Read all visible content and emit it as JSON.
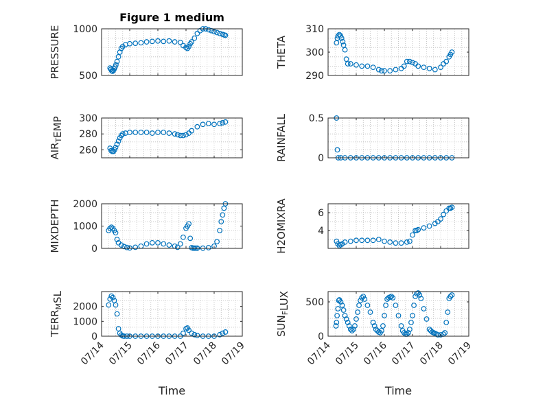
{
  "figure_title": "Figure 1 medium",
  "colors": {
    "marker": "#0072BD",
    "axis": "#262626",
    "grid": "#bdbdbd"
  },
  "chart_data": [
    {
      "type": "scatter",
      "ylabel": "PRESSURE",
      "ylabel_parts": [
        [
          "PRESSURE",
          ""
        ]
      ],
      "ylim": [
        500,
        1000
      ],
      "yticks": [
        500,
        1000
      ],
      "ytick_labels": [
        "500",
        "1000"
      ],
      "xlim": [
        0,
        5
      ],
      "grid": true,
      "x": [
        0.3,
        0.33,
        0.36,
        0.39,
        0.42,
        0.45,
        0.48,
        0.51,
        0.55,
        0.6,
        0.65,
        0.7,
        0.75,
        0.85,
        1.0,
        1.2,
        1.4,
        1.6,
        1.8,
        2.0,
        2.2,
        2.4,
        2.6,
        2.8,
        2.9,
        3.0,
        3.05,
        3.1,
        3.15,
        3.2,
        3.3,
        3.4,
        3.5,
        3.6,
        3.7,
        3.8,
        3.9,
        4.0,
        4.1,
        4.2,
        4.3,
        4.35,
        4.4
      ],
      "y": [
        580,
        565,
        550,
        545,
        555,
        570,
        590,
        615,
        650,
        700,
        750,
        790,
        810,
        830,
        840,
        845,
        850,
        860,
        865,
        870,
        865,
        870,
        860,
        855,
        820,
        800,
        790,
        810,
        840,
        860,
        900,
        950,
        980,
        1000,
        1000,
        990,
        980,
        970,
        960,
        950,
        940,
        935,
        930
      ]
    },
    {
      "type": "scatter",
      "ylabel": "THETA",
      "ylabel_parts": [
        [
          "THETA",
          ""
        ]
      ],
      "ylim": [
        290,
        310
      ],
      "yticks": [
        290,
        300,
        310
      ],
      "ytick_labels": [
        "290",
        "300",
        "310"
      ],
      "xlim": [
        0,
        5
      ],
      "grid": true,
      "x": [
        0.3,
        0.33,
        0.36,
        0.4,
        0.44,
        0.48,
        0.52,
        0.55,
        0.6,
        0.65,
        0.7,
        0.8,
        1.0,
        1.2,
        1.4,
        1.6,
        1.8,
        1.9,
        2.0,
        2.2,
        2.4,
        2.6,
        2.7,
        2.8,
        2.9,
        3.0,
        3.1,
        3.2,
        3.4,
        3.6,
        3.8,
        4.0,
        4.1,
        4.2,
        4.3,
        4.35,
        4.4
      ],
      "y": [
        304,
        306,
        307,
        307.5,
        307,
        306,
        304.5,
        303,
        301,
        297,
        295,
        295,
        294.5,
        294,
        294,
        293.5,
        292.5,
        292,
        292,
        292,
        292.5,
        293,
        294,
        296,
        296,
        295.5,
        295,
        294,
        293.5,
        293,
        292.5,
        293.5,
        295,
        296,
        298,
        299,
        300
      ]
    },
    {
      "type": "scatter",
      "ylabel": "AIR_TEMP",
      "ylabel_parts": [
        [
          "AIR",
          ""
        ],
        [
          "T",
          "sub"
        ],
        [
          "EMP",
          ""
        ]
      ],
      "ylim": [
        250,
        300
      ],
      "yticks": [
        260,
        280,
        300
      ],
      "ytick_labels": [
        "260",
        "280",
        "300"
      ],
      "xlim": [
        0,
        5
      ],
      "grid": true,
      "x": [
        0.3,
        0.34,
        0.38,
        0.42,
        0.46,
        0.5,
        0.55,
        0.6,
        0.65,
        0.7,
        0.75,
        0.85,
        1.0,
        1.2,
        1.4,
        1.6,
        1.8,
        2.0,
        2.2,
        2.4,
        2.6,
        2.7,
        2.8,
        2.9,
        3.0,
        3.1,
        3.2,
        3.4,
        3.6,
        3.8,
        4.0,
        4.2,
        4.3,
        4.4
      ],
      "y": [
        262,
        259,
        258,
        258,
        260,
        263,
        267,
        271,
        275,
        278,
        280,
        281,
        282,
        282,
        282,
        282,
        281,
        282,
        282,
        281,
        280,
        279,
        278,
        278,
        279,
        281,
        284,
        289,
        292,
        293,
        292,
        293,
        294,
        295
      ]
    },
    {
      "type": "scatter",
      "ylabel": "RAINFALL",
      "ylabel_parts": [
        [
          "RAINFALL",
          ""
        ]
      ],
      "ylim": [
        0,
        0.5
      ],
      "yticks": [
        0,
        0.5
      ],
      "ytick_labels": [
        "0",
        "0.5"
      ],
      "xlim": [
        0,
        5
      ],
      "grid": true,
      "x": [
        0.3,
        0.33,
        0.36,
        0.45,
        0.6,
        0.8,
        1.0,
        1.2,
        1.4,
        1.6,
        1.8,
        2.0,
        2.2,
        2.4,
        2.6,
        2.8,
        3.0,
        3.2,
        3.4,
        3.6,
        3.8,
        4.0,
        4.2,
        4.4
      ],
      "y": [
        0.5,
        0.1,
        0,
        0,
        0,
        0,
        0,
        0,
        0,
        0,
        0,
        0,
        0,
        0,
        0,
        0,
        0,
        0,
        0,
        0,
        0,
        0,
        0,
        0
      ]
    },
    {
      "type": "scatter",
      "ylabel": "MIXDEPTH",
      "ylabel_parts": [
        [
          "MIXDEPTH",
          ""
        ]
      ],
      "ylim": [
        0,
        2000
      ],
      "yticks": [
        0,
        1000,
        2000
      ],
      "ytick_labels": [
        "0",
        "1000",
        "2000"
      ],
      "xlim": [
        0,
        5
      ],
      "grid": true,
      "x": [
        0.25,
        0.3,
        0.35,
        0.4,
        0.45,
        0.5,
        0.55,
        0.6,
        0.7,
        0.8,
        0.9,
        1.0,
        1.2,
        1.4,
        1.6,
        1.8,
        2.0,
        2.2,
        2.4,
        2.6,
        2.7,
        2.8,
        2.9,
        3.0,
        3.05,
        3.1,
        3.15,
        3.2,
        3.25,
        3.3,
        3.35,
        3.4,
        3.6,
        3.8,
        4.0,
        4.1,
        4.2,
        4.25,
        4.3,
        4.35,
        4.4
      ],
      "y": [
        800,
        900,
        950,
        900,
        800,
        700,
        400,
        250,
        150,
        80,
        40,
        20,
        50,
        100,
        200,
        250,
        250,
        200,
        150,
        100,
        50,
        200,
        500,
        900,
        1000,
        1100,
        450,
        30,
        10,
        10,
        10,
        10,
        10,
        30,
        100,
        300,
        800,
        1200,
        1500,
        1800,
        2000
      ]
    },
    {
      "type": "scatter",
      "ylabel": "H2OMIXRA",
      "ylabel_parts": [
        [
          "H2OMIXRA",
          ""
        ]
      ],
      "ylim": [
        2,
        7
      ],
      "yticks": [
        4,
        6
      ],
      "ytick_labels": [
        "4",
        "6"
      ],
      "xlim": [
        0,
        5
      ],
      "grid": true,
      "x": [
        0.3,
        0.35,
        0.4,
        0.45,
        0.5,
        0.6,
        0.8,
        1.0,
        1.2,
        1.4,
        1.6,
        1.8,
        2.0,
        2.2,
        2.4,
        2.6,
        2.8,
        2.9,
        3.0,
        3.1,
        3.15,
        3.2,
        3.4,
        3.6,
        3.8,
        3.9,
        4.0,
        4.1,
        4.2,
        4.3,
        4.35,
        4.4
      ],
      "y": [
        2.8,
        2.5,
        2.3,
        2.4,
        2.5,
        2.7,
        2.8,
        2.9,
        2.9,
        2.9,
        2.9,
        3.0,
        2.8,
        2.7,
        2.6,
        2.6,
        2.7,
        2.8,
        3.5,
        4.0,
        4.0,
        4.1,
        4.3,
        4.5,
        4.8,
        5.0,
        5.3,
        5.8,
        6.2,
        6.5,
        6.5,
        6.6
      ]
    },
    {
      "type": "scatter",
      "ylabel": "TERR_MSL",
      "ylabel_parts": [
        [
          "TERR",
          ""
        ],
        [
          "M",
          "sub"
        ],
        [
          "SL",
          ""
        ]
      ],
      "ylim": [
        0,
        3000
      ],
      "yticks": [
        0,
        1000,
        2000
      ],
      "ytick_labels": [
        "0",
        "1000",
        "2000"
      ],
      "xlim": [
        0,
        5
      ],
      "grid": true,
      "x": [
        0.25,
        0.3,
        0.35,
        0.4,
        0.45,
        0.5,
        0.55,
        0.6,
        0.65,
        0.7,
        0.75,
        0.8,
        0.9,
        1.0,
        1.2,
        1.4,
        1.6,
        1.8,
        2.0,
        2.2,
        2.4,
        2.6,
        2.8,
        2.9,
        3.0,
        3.05,
        3.1,
        3.2,
        3.3,
        3.4,
        3.6,
        3.8,
        4.0,
        4.2,
        4.3,
        4.4
      ],
      "y": [
        2100,
        2500,
        2700,
        2600,
        2400,
        2100,
        1500,
        500,
        200,
        80,
        20,
        0,
        0,
        0,
        0,
        0,
        0,
        0,
        0,
        0,
        0,
        0,
        0,
        200,
        500,
        550,
        400,
        200,
        100,
        50,
        0,
        0,
        0,
        100,
        200,
        280
      ]
    },
    {
      "type": "scatter",
      "ylabel": "SUN_FLUX",
      "ylabel_parts": [
        [
          "SUN",
          ""
        ],
        [
          "F",
          "sub"
        ],
        [
          "LUX",
          ""
        ]
      ],
      "ylim": [
        0,
        650
      ],
      "yticks": [
        0,
        500
      ],
      "ytick_labels": [
        "0",
        "500"
      ],
      "xlim": [
        0,
        5
      ],
      "grid": true,
      "x": [
        0.28,
        0.3,
        0.32,
        0.35,
        0.38,
        0.4,
        0.45,
        0.5,
        0.55,
        0.6,
        0.65,
        0.7,
        0.75,
        0.8,
        0.85,
        0.9,
        0.95,
        1.0,
        1.05,
        1.1,
        1.15,
        1.2,
        1.25,
        1.3,
        1.4,
        1.5,
        1.6,
        1.65,
        1.7,
        1.75,
        1.8,
        1.85,
        1.9,
        1.95,
        2.0,
        2.05,
        2.1,
        2.15,
        2.2,
        2.25,
        2.3,
        2.4,
        2.5,
        2.6,
        2.65,
        2.7,
        2.75,
        2.8,
        2.85,
        2.9,
        2.95,
        3.0,
        3.05,
        3.1,
        3.15,
        3.2,
        3.25,
        3.3,
        3.4,
        3.5,
        3.6,
        3.65,
        3.7,
        3.75,
        3.8,
        3.85,
        3.9,
        4.0,
        4.1,
        4.15,
        4.2,
        4.25,
        4.3,
        4.35,
        4.4
      ],
      "y": [
        150,
        200,
        300,
        400,
        520,
        530,
        500,
        450,
        380,
        300,
        250,
        200,
        150,
        100,
        80,
        100,
        150,
        250,
        350,
        450,
        520,
        560,
        580,
        540,
        450,
        350,
        200,
        150,
        100,
        80,
        60,
        50,
        80,
        150,
        300,
        450,
        540,
        560,
        570,
        580,
        560,
        450,
        300,
        150,
        80,
        50,
        30,
        30,
        50,
        100,
        200,
        300,
        450,
        580,
        620,
        630,
        600,
        550,
        400,
        250,
        100,
        80,
        60,
        50,
        40,
        30,
        20,
        20,
        30,
        50,
        200,
        350,
        550,
        580,
        600
      ]
    }
  ],
  "xtick_labels": [
    "07/14",
    "07/15",
    "07/16",
    "07/17",
    "07/18",
    "07/19"
  ],
  "xlabel": "Time"
}
